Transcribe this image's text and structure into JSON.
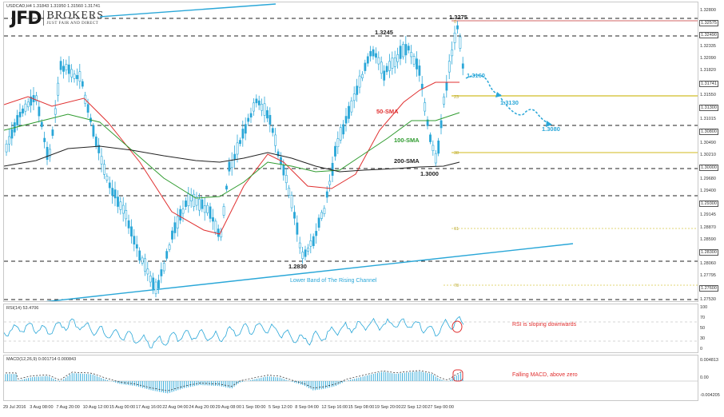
{
  "symbol_header": "USDCAD,H4  1.31843 1.31950 1.31560 1.31741",
  "logo": {
    "mark": "JFD",
    "name": "BROKERS",
    "tagline": "JUST FAIR AND DIRECT"
  },
  "annotations": {
    "high_1_3275": "1.3275",
    "high_1_3245": "1.3245",
    "low_1_2830": "1.2830",
    "low_1_3000": "1.3000",
    "target_1_3160": "1.3160",
    "target_1_3130": "1.3130",
    "target_1_3080": "1.3080",
    "sma_50": "50-SMA",
    "sma_100": "100-SMA",
    "sma_200": "200-SMA",
    "channel": "Lower Band of The Rising Channel",
    "fib_0": "0",
    "fib_23": "23",
    "fib_38": "38",
    "fib_61": "61",
    "fib_78": "78"
  },
  "price_axis": {
    "labels": [
      "1.32800",
      "1.32575",
      "1.32490",
      "1.32335",
      "1.32090",
      "1.31820",
      "1.31741",
      "1.31550",
      "1.31300",
      "1.31015",
      "1.30800",
      "1.30490",
      "1.30210",
      "1.30000",
      "1.29680",
      "1.29400",
      "1.29300",
      "1.29145",
      "1.28870",
      "1.28590",
      "1.28300",
      "1.28060",
      "1.27795",
      "1.27600",
      "1.27530"
    ],
    "boxed": [
      "1.32575",
      "1.32490",
      "1.31741",
      "1.31300",
      "1.30800",
      "1.30000",
      "1.29300",
      "1.28300",
      "1.27600"
    ]
  },
  "rsi": {
    "title": "RSI(14) 53.4706",
    "axis": [
      "100",
      "70",
      "50",
      "30",
      "0"
    ],
    "note": "RSI is sloping downwards"
  },
  "macd": {
    "title": "MACD(12,26,9) 0.001714 0.000843",
    "axis": [
      "0.004813",
      "0.00",
      "-0.004205"
    ],
    "note": "Falling MACD, above zero"
  },
  "time_axis": [
    "29 Jul 2016",
    "3 Aug 08:00",
    "7 Aug 20:00",
    "10 Aug 12:00",
    "15 Aug 00:00",
    "17 Aug 16:00",
    "22 Aug 04:00",
    "24 Aug 20:00",
    "29 Aug 08:00",
    "1 Sep 00:00",
    "5 Sep 12:00",
    "8 Sep 04:00",
    "12 Sep 16:00",
    "15 Sep 08:00",
    "19 Sep 20:00",
    "22 Sep 12:00",
    "27 Sep 00:00"
  ],
  "colors": {
    "candle": "#2aa7d8",
    "sma50": "#e03030",
    "sma100": "#2f9b2f",
    "sma200": "#222222",
    "channel": "#2aa7d8",
    "fib": "#d9c84a",
    "note": "#e03030",
    "target": "#2aa7d8"
  }
}
